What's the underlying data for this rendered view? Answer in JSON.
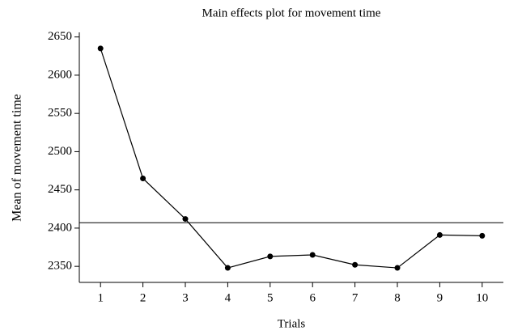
{
  "chart_data": {
    "type": "line",
    "title": "Main effects plot for movement time",
    "x_label": "Trials",
    "y_label": "Mean of movement time",
    "x": [
      1,
      2,
      3,
      4,
      5,
      6,
      7,
      8,
      9,
      10
    ],
    "series": [
      {
        "color": "#000000",
        "values": [
          2635,
          2465,
          2412,
          2348,
          2363,
          2365,
          2352,
          2348,
          2391,
          2390
        ]
      }
    ],
    "reference_line": 2407,
    "xlim": [
      0.5,
      10.5
    ],
    "xticks": [
      1,
      2,
      3,
      4,
      5,
      6,
      7,
      8,
      9,
      10
    ],
    "ylim": [
      2329,
      2656
    ],
    "yticks": [
      2350,
      2400,
      2450,
      2500,
      2550,
      2600,
      2650
    ]
  }
}
